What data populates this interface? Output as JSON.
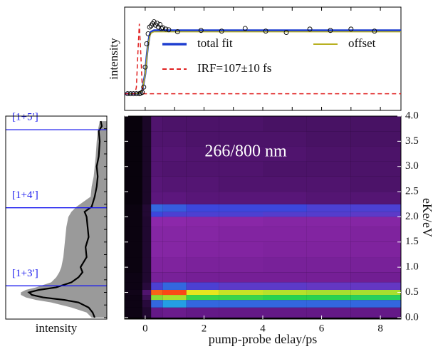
{
  "chart_data": [
    {
      "type": "line",
      "ylabel": "intensity",
      "xlim": [
        -0.7,
        8.7
      ],
      "ylim": [
        -0.25,
        1.3
      ],
      "xticks": [
        0,
        1,
        2,
        3,
        4,
        5,
        6,
        7,
        8
      ],
      "scatter": {
        "color": "#000000",
        "x": [
          -0.6,
          -0.5,
          -0.4,
          -0.3,
          -0.2,
          -0.15,
          -0.1,
          -0.05,
          0,
          0.05,
          0.1,
          0.15,
          0.2,
          0.25,
          0.3,
          0.35,
          0.4,
          0.45,
          0.5,
          0.55,
          0.6,
          0.7,
          0.8,
          1.1,
          1.9,
          2.6,
          3.4,
          4.1,
          4.8,
          5.6,
          6.3,
          7.0,
          7.8
        ],
        "values": [
          0,
          0,
          0,
          0,
          0,
          0.01,
          0.02,
          0.1,
          0.4,
          0.75,
          0.9,
          1.0,
          1.02,
          1.05,
          1.08,
          1.03,
          1.06,
          1.0,
          1.04,
          0.98,
          0.99,
          0.97,
          0.96,
          0.93,
          0.95,
          0.94,
          0.98,
          0.94,
          0.92,
          0.97,
          0.95,
          0.97,
          0.94
        ]
      },
      "series": [
        {
          "name": "total fit",
          "color": "#1f3fd0",
          "width": 3,
          "x": [
            -0.7,
            -0.3,
            -0.2,
            -0.1,
            0,
            0.05,
            0.1,
            0.15,
            0.2,
            0.3,
            0.5,
            1,
            2,
            4,
            6,
            8,
            8.7
          ],
          "values": [
            0,
            0,
            0.01,
            0.05,
            0.3,
            0.55,
            0.75,
            0.88,
            0.93,
            0.95,
            0.95,
            0.95,
            0.95,
            0.95,
            0.95,
            0.95,
            0.95
          ]
        },
        {
          "name": "offset",
          "color": "#b8b020",
          "width": 1.5,
          "x": [
            -0.7,
            -0.3,
            -0.2,
            -0.1,
            0,
            0.05,
            0.1,
            0.15,
            0.2,
            0.3,
            0.5,
            1,
            2,
            4,
            6,
            8,
            8.7
          ],
          "values": [
            0,
            0,
            0.01,
            0.05,
            0.29,
            0.53,
            0.73,
            0.86,
            0.91,
            0.93,
            0.93,
            0.93,
            0.93,
            0.93,
            0.93,
            0.93,
            0.93
          ]
        },
        {
          "name": "IRF=107±10 fs",
          "color": "#e02020",
          "width": 1.5,
          "dashed": true,
          "x": [
            -0.7,
            -0.35,
            -0.3,
            -0.25,
            -0.2,
            -0.15,
            -0.1,
            -0.05,
            0,
            8.7
          ],
          "values": [
            0,
            0,
            0.1,
            0.6,
            1.05,
            0.6,
            0.1,
            0,
            0,
            0
          ]
        }
      ]
    },
    {
      "type": "heatmap",
      "xlabel": "pump-probe delay/ps",
      "ylabel": "eKe/eV",
      "annotation": "266/800 nm",
      "xlim": [
        -0.7,
        8.7
      ],
      "ylim": [
        -0.03,
        4.0
      ],
      "xticks": [
        0,
        2,
        4,
        6,
        8
      ],
      "yticks": [
        {
          "value": 0,
          "label": "0.0"
        },
        0.5,
        {
          "value": 1,
          "label": "1.0"
        },
        1.5,
        {
          "value": 2,
          "label": "2.0"
        },
        2.5,
        {
          "value": 3,
          "label": "3.0"
        },
        3.5,
        {
          "value": 4,
          "label": "4.0"
        }
      ],
      "x_edges": [
        -0.7,
        -0.1,
        0.2,
        0.6,
        1.4,
        2.5,
        4,
        5.5,
        7,
        8.7
      ],
      "y_edges": [
        0,
        0.2,
        0.35,
        0.45,
        0.55,
        0.7,
        0.9,
        1.2,
        1.5,
        1.8,
        2.0,
        2.1,
        2.25,
        2.5,
        2.8,
        3.1,
        3.4,
        3.7,
        4.0
      ],
      "z": [
        [
          0.05,
          0.12,
          0.3,
          0.32,
          0.3,
          0.3,
          0.3,
          0.3,
          0.3
        ],
        [
          0.05,
          0.15,
          0.55,
          0.6,
          0.55,
          0.55,
          0.55,
          0.55,
          0.55
        ],
        [
          0.05,
          0.2,
          0.8,
          0.82,
          0.75,
          0.75,
          0.74,
          0.74,
          0.73
        ],
        [
          0.06,
          0.25,
          0.95,
          0.97,
          0.86,
          0.84,
          0.83,
          0.82,
          0.82
        ],
        [
          0.05,
          0.15,
          0.5,
          0.55,
          0.5,
          0.48,
          0.48,
          0.47,
          0.47
        ],
        [
          0.05,
          0.12,
          0.36,
          0.36,
          0.35,
          0.35,
          0.35,
          0.35,
          0.34
        ],
        [
          0.04,
          0.12,
          0.38,
          0.38,
          0.37,
          0.37,
          0.36,
          0.36,
          0.36
        ],
        [
          0.04,
          0.12,
          0.4,
          0.4,
          0.39,
          0.39,
          0.38,
          0.38,
          0.38
        ],
        [
          0.04,
          0.12,
          0.4,
          0.4,
          0.4,
          0.39,
          0.39,
          0.39,
          0.38
        ],
        [
          0.04,
          0.12,
          0.42,
          0.42,
          0.41,
          0.41,
          0.4,
          0.4,
          0.4
        ],
        [
          0.04,
          0.13,
          0.52,
          0.5,
          0.5,
          0.5,
          0.49,
          0.49,
          0.48
        ],
        [
          0.04,
          0.13,
          0.55,
          0.54,
          0.52,
          0.52,
          0.52,
          0.5,
          0.5
        ],
        [
          0.03,
          0.1,
          0.28,
          0.28,
          0.27,
          0.27,
          0.27,
          0.26,
          0.26
        ],
        [
          0.03,
          0.1,
          0.27,
          0.26,
          0.26,
          0.25,
          0.25,
          0.25,
          0.24
        ],
        [
          0.03,
          0.1,
          0.26,
          0.25,
          0.25,
          0.25,
          0.24,
          0.24,
          0.24
        ],
        [
          0.03,
          0.1,
          0.26,
          0.26,
          0.25,
          0.25,
          0.25,
          0.24,
          0.24
        ],
        [
          0.03,
          0.1,
          0.25,
          0.25,
          0.24,
          0.24,
          0.24,
          0.23,
          0.23
        ],
        [
          0.03,
          0.1,
          0.25,
          0.24,
          0.24,
          0.24,
          0.23,
          0.23,
          0.23
        ]
      ]
    },
    {
      "type": "area",
      "xlabel": "intensity",
      "xlim": [
        1,
        0
      ],
      "ylim": [
        -0.03,
        4.0
      ],
      "yticks": [
        0,
        0.25,
        0.5,
        0.75,
        1,
        1.25,
        1.5,
        1.75,
        2,
        2.25,
        2.5,
        2.75,
        3,
        3.25,
        3.5,
        3.75
      ],
      "y": [
        0,
        0.1,
        0.2,
        0.3,
        0.35,
        0.4,
        0.45,
        0.5,
        0.55,
        0.6,
        0.7,
        0.8,
        0.9,
        1.0,
        1.2,
        1.4,
        1.6,
        1.8,
        2.0,
        2.1,
        2.2,
        2.4,
        2.6,
        2.8,
        3.0,
        3.2,
        3.5,
        3.7,
        3.8,
        3.9
      ],
      "series": [
        {
          "color": "#9a9a9a",
          "fill": true,
          "values": [
            0.15,
            0.2,
            0.35,
            0.55,
            0.7,
            0.8,
            0.85,
            0.85,
            0.8,
            0.7,
            0.55,
            0.5,
            0.47,
            0.45,
            0.43,
            0.42,
            0.41,
            0.4,
            0.38,
            0.35,
            0.3,
            0.16,
            0.15,
            0.13,
            0.12,
            0.11,
            0.1,
            0.09,
            0.08,
            0.07
          ]
        },
        {
          "color": "#000000",
          "fill": false,
          "values": [
            0.12,
            0.14,
            0.18,
            0.28,
            0.42,
            0.63,
            0.74,
            0.77,
            0.67,
            0.5,
            0.35,
            0.28,
            0.24,
            0.26,
            0.2,
            0.21,
            0.18,
            0.19,
            0.2,
            0.22,
            0.15,
            0.12,
            0.1,
            0.09,
            0.1,
            0.08,
            0.07,
            0.08,
            0.05,
            0.06
          ]
        }
      ],
      "hlines": [
        {
          "label": "[1+5′]",
          "value": 3.73,
          "color": "#1a1aee"
        },
        {
          "label": "[1+4′]",
          "value": 2.18,
          "color": "#1a1aee"
        },
        {
          "label": "[1+3′]",
          "value": 0.63,
          "color": "#1a1aee"
        }
      ]
    }
  ]
}
